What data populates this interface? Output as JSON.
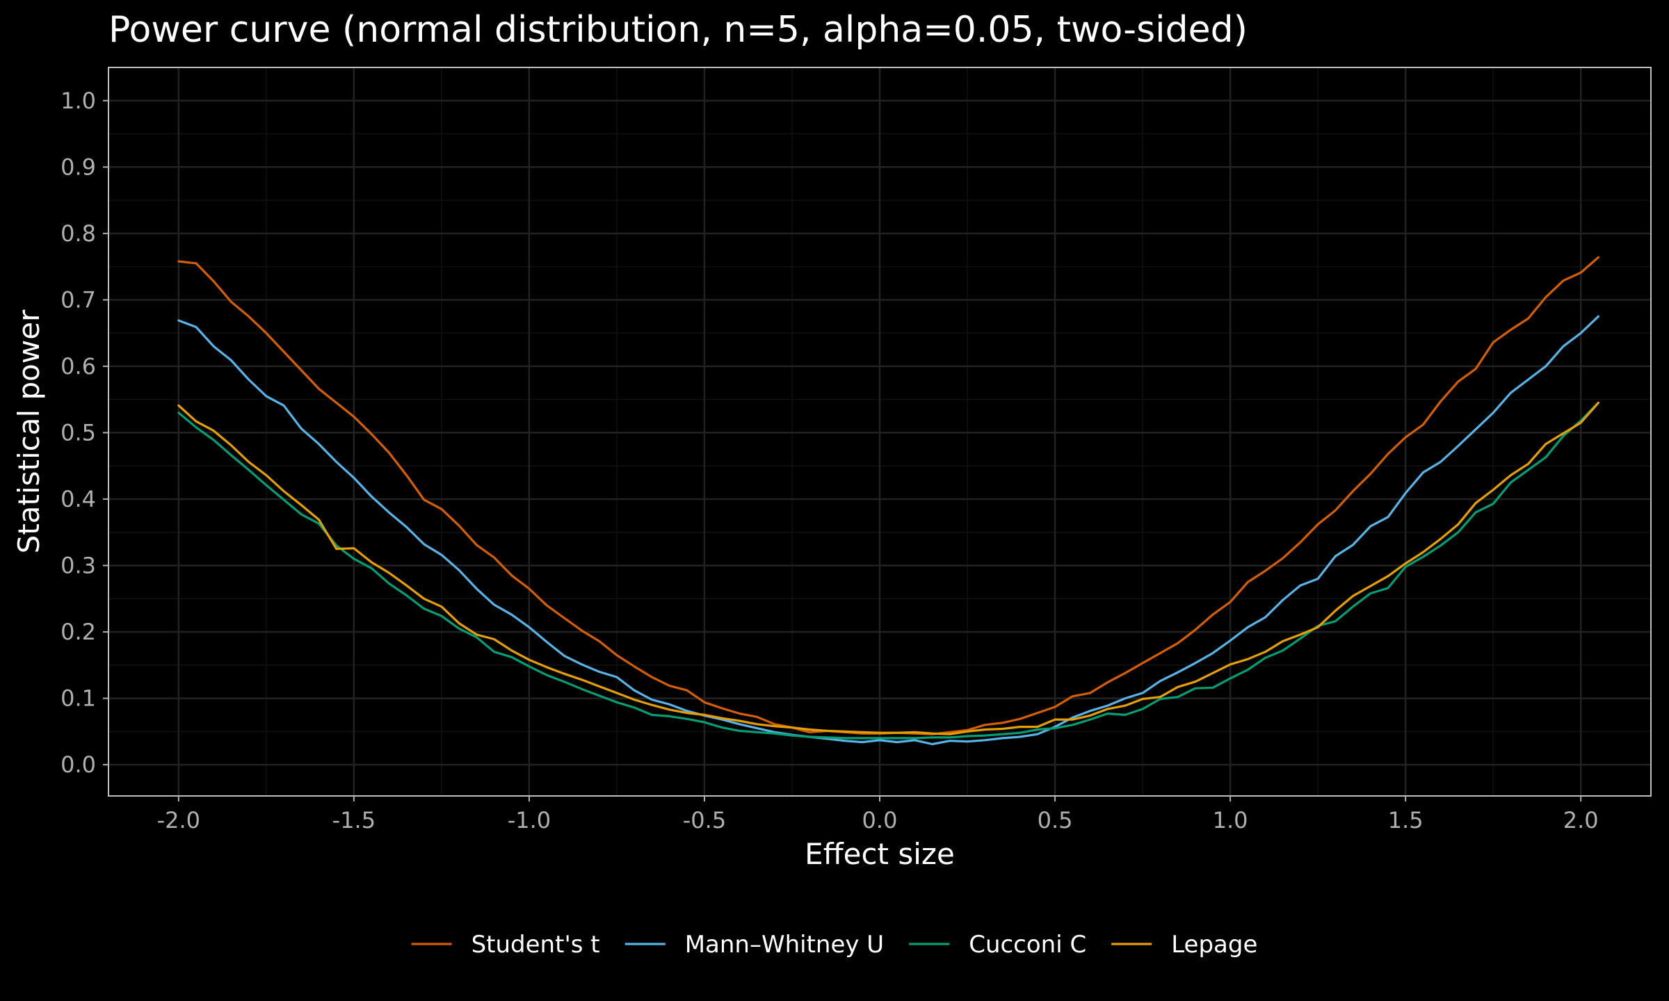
{
  "chart_data": {
    "type": "line",
    "title": "Power curve (normal distribution, n=5, alpha=0.05, two-sided)",
    "xlabel": "Effect size",
    "ylabel": "Statistical power",
    "xlim": [
      -2.2,
      2.2
    ],
    "ylim": [
      -0.047,
      1.05
    ],
    "x_ticks": [
      -2.0,
      -1.5,
      -1.0,
      -0.5,
      0.0,
      0.5,
      1.0,
      1.5,
      2.0
    ],
    "x_tick_labels": [
      "-2.0",
      "-1.5",
      "-1.0",
      "-0.5",
      "0.0",
      "0.5",
      "1.0",
      "1.5",
      "2.0"
    ],
    "y_ticks": [
      0.0,
      0.1,
      0.2,
      0.3,
      0.4,
      0.5,
      0.6,
      0.7,
      0.8,
      0.9,
      1.0
    ],
    "y_tick_labels": [
      "0.0",
      "0.1",
      "0.2",
      "0.3",
      "0.4",
      "0.5",
      "0.6",
      "0.7",
      "0.8",
      "0.9",
      "1.0"
    ],
    "grid": true,
    "legend_position": "bottom",
    "background_color": "#000000",
    "panel_border_color": "#bfbfbf",
    "grid_color": "#222222",
    "x_step": 0.05,
    "x_start": -2.0,
    "series": [
      {
        "name": "Student's t",
        "color": "#D55E00",
        "values": [
          0.758,
          0.755,
          0.728,
          0.697,
          0.675,
          0.65,
          0.622,
          0.594,
          0.566,
          0.545,
          0.524,
          0.498,
          0.47,
          0.436,
          0.399,
          0.385,
          0.36,
          0.331,
          0.312,
          0.285,
          0.265,
          0.24,
          0.221,
          0.202,
          0.186,
          0.165,
          0.148,
          0.132,
          0.119,
          0.112,
          0.094,
          0.085,
          0.077,
          0.072,
          0.061,
          0.056,
          0.049,
          0.051,
          0.049,
          0.047,
          0.047,
          0.048,
          0.047,
          0.046,
          0.049,
          0.052,
          0.06,
          0.063,
          0.069,
          0.078,
          0.087,
          0.103,
          0.108,
          0.124,
          0.138,
          0.153,
          0.168,
          0.183,
          0.203,
          0.226,
          0.245,
          0.275,
          0.292,
          0.311,
          0.335,
          0.362,
          0.383,
          0.412,
          0.438,
          0.468,
          0.493,
          0.512,
          0.547,
          0.577,
          0.596,
          0.636,
          0.655,
          0.672,
          0.704,
          0.729,
          0.741,
          0.764
        ]
      },
      {
        "name": "Mann–Whitney U",
        "color": "#56B4E9",
        "values": [
          0.669,
          0.659,
          0.63,
          0.609,
          0.58,
          0.555,
          0.541,
          0.506,
          0.483,
          0.456,
          0.432,
          0.404,
          0.38,
          0.358,
          0.332,
          0.316,
          0.293,
          0.265,
          0.241,
          0.226,
          0.207,
          0.185,
          0.164,
          0.151,
          0.14,
          0.132,
          0.112,
          0.098,
          0.091,
          0.081,
          0.074,
          0.068,
          0.061,
          0.055,
          0.049,
          0.045,
          0.042,
          0.039,
          0.036,
          0.034,
          0.037,
          0.034,
          0.037,
          0.031,
          0.036,
          0.035,
          0.037,
          0.04,
          0.042,
          0.046,
          0.057,
          0.071,
          0.081,
          0.089,
          0.1,
          0.108,
          0.126,
          0.139,
          0.153,
          0.168,
          0.187,
          0.207,
          0.222,
          0.248,
          0.27,
          0.28,
          0.314,
          0.331,
          0.359,
          0.373,
          0.409,
          0.44,
          0.456,
          0.48,
          0.505,
          0.53,
          0.56,
          0.58,
          0.6,
          0.63,
          0.65,
          0.675
        ]
      },
      {
        "name": "Cucconi C",
        "color": "#009E73",
        "values": [
          0.53,
          0.508,
          0.489,
          0.466,
          0.444,
          0.421,
          0.399,
          0.377,
          0.363,
          0.33,
          0.31,
          0.296,
          0.273,
          0.255,
          0.235,
          0.224,
          0.205,
          0.192,
          0.17,
          0.162,
          0.148,
          0.135,
          0.125,
          0.114,
          0.104,
          0.094,
          0.086,
          0.075,
          0.073,
          0.069,
          0.064,
          0.056,
          0.051,
          0.049,
          0.047,
          0.044,
          0.042,
          0.041,
          0.04,
          0.04,
          0.04,
          0.04,
          0.04,
          0.041,
          0.041,
          0.043,
          0.044,
          0.046,
          0.048,
          0.053,
          0.055,
          0.06,
          0.068,
          0.077,
          0.075,
          0.084,
          0.099,
          0.102,
          0.115,
          0.116,
          0.13,
          0.143,
          0.161,
          0.172,
          0.19,
          0.209,
          0.216,
          0.238,
          0.258,
          0.266,
          0.298,
          0.313,
          0.33,
          0.35,
          0.38,
          0.393,
          0.425,
          0.444,
          0.463,
          0.495,
          0.518,
          0.545
        ]
      },
      {
        "name": "Lepage",
        "color": "#E69F00",
        "values": [
          0.541,
          0.517,
          0.503,
          0.481,
          0.456,
          0.436,
          0.412,
          0.391,
          0.369,
          0.325,
          0.326,
          0.305,
          0.289,
          0.27,
          0.25,
          0.238,
          0.213,
          0.196,
          0.189,
          0.172,
          0.158,
          0.147,
          0.137,
          0.128,
          0.118,
          0.108,
          0.098,
          0.09,
          0.083,
          0.078,
          0.075,
          0.07,
          0.066,
          0.061,
          0.058,
          0.056,
          0.053,
          0.051,
          0.05,
          0.049,
          0.048,
          0.048,
          0.049,
          0.047,
          0.046,
          0.05,
          0.053,
          0.054,
          0.057,
          0.057,
          0.068,
          0.068,
          0.074,
          0.084,
          0.089,
          0.099,
          0.102,
          0.117,
          0.125,
          0.138,
          0.151,
          0.159,
          0.17,
          0.186,
          0.196,
          0.207,
          0.232,
          0.254,
          0.269,
          0.284,
          0.303,
          0.32,
          0.34,
          0.362,
          0.394,
          0.414,
          0.436,
          0.453,
          0.483,
          0.499,
          0.515,
          0.545
        ]
      }
    ]
  }
}
